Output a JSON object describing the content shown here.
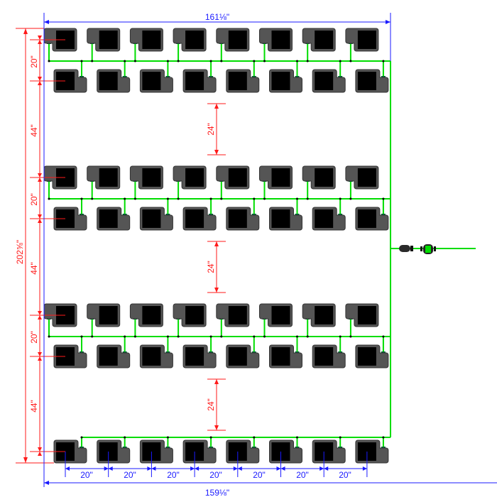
{
  "dimensions": {
    "top_width": "161⅛\"",
    "bottom_width": "159⅛\"",
    "total_height": "202⅝\"",
    "row_gap": "20\"",
    "row_pair_spacing": "44\"",
    "aisle": "24\"",
    "pot_spacing": "20\""
  },
  "layout": {
    "pots_per_row": 8,
    "row_types": [
      "A",
      "B",
      "A",
      "B",
      "A",
      "B",
      "B"
    ]
  },
  "colors": {
    "pipe": "#00dd00",
    "pot_body": "#555555",
    "pot_media": "#000000",
    "dimension_red": "#ff1a1a",
    "dimension_blue": "#1a1aff"
  }
}
